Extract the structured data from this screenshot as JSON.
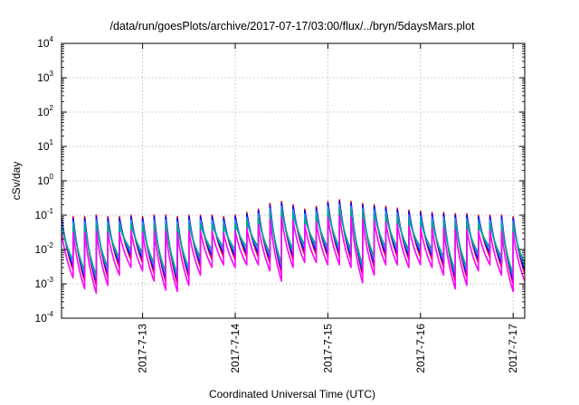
{
  "chart_data": {
    "type": "line",
    "title": "/data/run/goesPlots/archive/2017-07-17/03:00/flux/../bryn/5daysMars.plot",
    "xlabel": "Coordinated Universal Time (UTC)",
    "ylabel": "cSv/day",
    "yscale": "log",
    "ylim": [
      0.0001,
      10000
    ],
    "y_ticks": [
      {
        "base": "10",
        "exp": "-4",
        "value": 0.0001
      },
      {
        "base": "10",
        "exp": "-3",
        "value": 0.001
      },
      {
        "base": "10",
        "exp": "-2",
        "value": 0.01
      },
      {
        "base": "10",
        "exp": "-1",
        "value": 0.1
      },
      {
        "base": "10",
        "exp": "0",
        "value": 1
      },
      {
        "base": "10",
        "exp": "1",
        "value": 10
      },
      {
        "base": "10",
        "exp": "2",
        "value": 100
      },
      {
        "base": "10",
        "exp": "3",
        "value": 1000
      },
      {
        "base": "10",
        "exp": "4",
        "value": 10000
      }
    ],
    "xlim": [
      "2017-07-12T03:00",
      "2017-07-17T03:00"
    ],
    "x_ticks": [
      {
        "label": "2017-7-13",
        "value": "2017-07-13T00:00"
      },
      {
        "label": "2017-7-14",
        "value": "2017-07-14T00:00"
      },
      {
        "label": "2017-7-15",
        "value": "2017-07-15T00:00"
      },
      {
        "label": "2017-7-16",
        "value": "2017-07-16T00:00"
      },
      {
        "label": "2017-7-17",
        "value": "2017-07-17T00:00"
      }
    ],
    "grid": true,
    "period_hours": 3,
    "peaks": [
      {
        "time": "2017-07-12T03:00",
        "value": 0.09
      },
      {
        "time": "2017-07-12T06:00",
        "value": 0.09
      },
      {
        "time": "2017-07-12T09:00",
        "value": 0.09
      },
      {
        "time": "2017-07-12T12:00",
        "value": 0.1
      },
      {
        "time": "2017-07-12T15:00",
        "value": 0.09
      },
      {
        "time": "2017-07-12T18:00",
        "value": 0.09
      },
      {
        "time": "2017-07-12T21:00",
        "value": 0.1
      },
      {
        "time": "2017-07-13T00:00",
        "value": 0.09
      },
      {
        "time": "2017-07-13T03:00",
        "value": 0.1
      },
      {
        "time": "2017-07-13T06:00",
        "value": 0.1
      },
      {
        "time": "2017-07-13T09:00",
        "value": 0.09
      },
      {
        "time": "2017-07-13T12:00",
        "value": 0.1
      },
      {
        "time": "2017-07-13T15:00",
        "value": 0.1
      },
      {
        "time": "2017-07-13T18:00",
        "value": 0.1
      },
      {
        "time": "2017-07-13T21:00",
        "value": 0.09
      },
      {
        "time": "2017-07-14T00:00",
        "value": 0.1
      },
      {
        "time": "2017-07-14T03:00",
        "value": 0.12
      },
      {
        "time": "2017-07-14T06:00",
        "value": 0.15
      },
      {
        "time": "2017-07-14T09:00",
        "value": 0.22
      },
      {
        "time": "2017-07-14T12:00",
        "value": 0.25
      },
      {
        "time": "2017-07-14T15:00",
        "value": 0.2
      },
      {
        "time": "2017-07-14T18:00",
        "value": 0.15
      },
      {
        "time": "2017-07-14T21:00",
        "value": 0.18
      },
      {
        "time": "2017-07-15T00:00",
        "value": 0.25
      },
      {
        "time": "2017-07-15T03:00",
        "value": 0.28
      },
      {
        "time": "2017-07-15T06:00",
        "value": 0.25
      },
      {
        "time": "2017-07-15T09:00",
        "value": 0.22
      },
      {
        "time": "2017-07-15T12:00",
        "value": 0.2
      },
      {
        "time": "2017-07-15T15:00",
        "value": 0.18
      },
      {
        "time": "2017-07-15T18:00",
        "value": 0.16
      },
      {
        "time": "2017-07-15T21:00",
        "value": 0.14
      },
      {
        "time": "2017-07-16T00:00",
        "value": 0.13
      },
      {
        "time": "2017-07-16T03:00",
        "value": 0.12
      },
      {
        "time": "2017-07-16T06:00",
        "value": 0.12
      },
      {
        "time": "2017-07-16T09:00",
        "value": 0.11
      },
      {
        "time": "2017-07-16T12:00",
        "value": 0.11
      },
      {
        "time": "2017-07-16T15:00",
        "value": 0.1
      },
      {
        "time": "2017-07-16T18:00",
        "value": 0.1
      },
      {
        "time": "2017-07-16T21:00",
        "value": 0.1
      },
      {
        "time": "2017-07-17T00:00",
        "value": 0.09
      }
    ],
    "troughs": [
      {
        "time": "2017-07-12T06:00",
        "value": 0.0025
      },
      {
        "time": "2017-07-12T09:00",
        "value": 0.0012
      },
      {
        "time": "2017-07-12T12:00",
        "value": 0.0009
      },
      {
        "time": "2017-07-12T15:00",
        "value": 0.0015
      },
      {
        "time": "2017-07-12T18:00",
        "value": 0.003
      },
      {
        "time": "2017-07-12T21:00",
        "value": 0.005
      },
      {
        "time": "2017-07-13T00:00",
        "value": 0.004
      },
      {
        "time": "2017-07-13T03:00",
        "value": 0.002
      },
      {
        "time": "2017-07-13T06:00",
        "value": 0.0011
      },
      {
        "time": "2017-07-13T09:00",
        "value": 0.001
      },
      {
        "time": "2017-07-13T12:00",
        "value": 0.0015
      },
      {
        "time": "2017-07-13T15:00",
        "value": 0.003
      },
      {
        "time": "2017-07-13T18:00",
        "value": 0.005
      },
      {
        "time": "2017-07-13T21:00",
        "value": 0.006
      },
      {
        "time": "2017-07-14T00:00",
        "value": 0.005
      },
      {
        "time": "2017-07-14T03:00",
        "value": 0.006
      },
      {
        "time": "2017-07-14T06:00",
        "value": 0.006
      },
      {
        "time": "2017-07-14T09:00",
        "value": 0.004
      },
      {
        "time": "2017-07-14T12:00",
        "value": 0.002
      },
      {
        "time": "2017-07-14T15:00",
        "value": 0.005
      },
      {
        "time": "2017-07-14T18:00",
        "value": 0.007
      },
      {
        "time": "2017-07-14T21:00",
        "value": 0.007
      },
      {
        "time": "2017-07-15T00:00",
        "value": 0.006
      },
      {
        "time": "2017-07-15T03:00",
        "value": 0.006
      },
      {
        "time": "2017-07-15T06:00",
        "value": 0.005
      },
      {
        "time": "2017-07-15T09:00",
        "value": 0.0018
      },
      {
        "time": "2017-07-15T12:00",
        "value": 0.003
      },
      {
        "time": "2017-07-15T15:00",
        "value": 0.006
      },
      {
        "time": "2017-07-15T18:00",
        "value": 0.006
      },
      {
        "time": "2017-07-15T21:00",
        "value": 0.005
      },
      {
        "time": "2017-07-16T00:00",
        "value": 0.006
      },
      {
        "time": "2017-07-16T03:00",
        "value": 0.005
      },
      {
        "time": "2017-07-16T06:00",
        "value": 0.003
      },
      {
        "time": "2017-07-16T09:00",
        "value": 0.0012
      },
      {
        "time": "2017-07-16T12:00",
        "value": 0.0015
      },
      {
        "time": "2017-07-16T15:00",
        "value": 0.004
      },
      {
        "time": "2017-07-16T18:00",
        "value": 0.006
      },
      {
        "time": "2017-07-16T21:00",
        "value": 0.003
      },
      {
        "time": "2017-07-17T00:00",
        "value": 0.001
      },
      {
        "time": "2017-07-17T03:00",
        "value": 0.002
      }
    ],
    "series": [
      {
        "color": "#ff0000",
        "peak_factor": 1.0,
        "trough_factor": 1.0
      },
      {
        "color": "#0000ff",
        "peak_factor": 0.9,
        "trough_factor": 1.25
      },
      {
        "color": "#1e90ff",
        "peak_factor": 0.72,
        "trough_factor": 1.6
      },
      {
        "color": "#00aa88",
        "peak_factor": 0.55,
        "trough_factor": 2.0
      },
      {
        "color": "#ff00ff",
        "peak_factor": 0.35,
        "trough_factor": 0.6
      }
    ]
  }
}
